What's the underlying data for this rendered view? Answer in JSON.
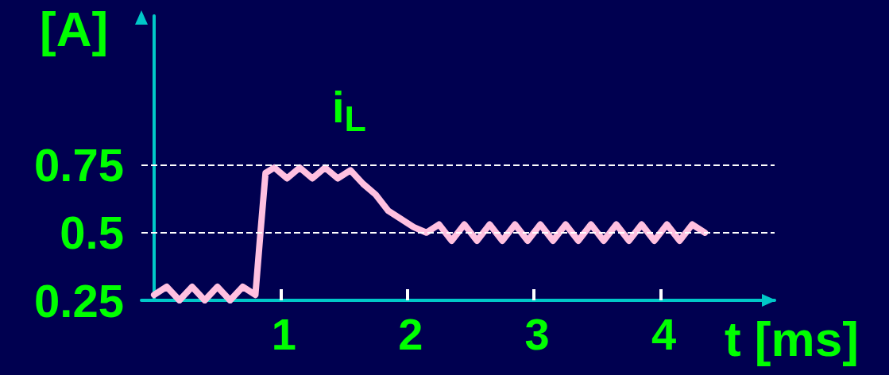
{
  "chart_data": {
    "type": "line",
    "xlabel": "t [ms]",
    "ylabel": "[A]",
    "xlim": [
      -0.1,
      4.9
    ],
    "xticks": [
      1,
      2,
      3,
      4
    ],
    "ylim": [
      0.25,
      1.3
    ],
    "yticks": [
      0.25,
      0.5,
      0.75
    ],
    "grid": false,
    "line_style": "solid",
    "series": [
      {
        "name": null,
        "color": "#ffc0e0",
        "x": [
          0,
          0.1,
          0.2,
          0.3,
          0.4,
          0.5,
          0.6,
          0.7,
          0.8,
          0.84,
          0.88,
          0.95,
          1.05,
          1.15,
          1.25,
          1.35,
          1.45,
          1.55,
          1.65,
          1.75,
          1.85,
          1.95,
          2.05,
          2.15,
          2.25,
          2.35,
          2.45,
          2.55,
          2.65,
          2.75,
          2.85,
          2.95,
          3.05,
          3.15,
          3.25,
          3.35,
          3.45,
          3.55,
          3.65,
          3.75,
          3.85,
          3.95,
          4.05,
          4.15,
          4.25,
          4.35
        ],
        "values": [
          0.27,
          0.3,
          0.25,
          0.3,
          0.25,
          0.3,
          0.25,
          0.3,
          0.27,
          0.5,
          0.72,
          0.74,
          0.7,
          0.74,
          0.7,
          0.74,
          0.7,
          0.73,
          0.68,
          0.64,
          0.58,
          0.55,
          0.52,
          0.5,
          0.53,
          0.47,
          0.53,
          0.47,
          0.53,
          0.47,
          0.53,
          0.47,
          0.53,
          0.47,
          0.53,
          0.47,
          0.53,
          0.47,
          0.53,
          0.47,
          0.53,
          0.47,
          0.53,
          0.47,
          0.53,
          0.5
        ]
      }
    ],
    "ref_lines": [
      {
        "axis": "y",
        "value": 0.75,
        "label": null,
        "color": "#ffffff",
        "line_style": "dashed"
      },
      {
        "axis": "y",
        "value": 0.5,
        "label": null,
        "color": "#ffffff",
        "line_style": "dashed"
      }
    ],
    "annotations": [
      "i$_{L}$"
    ]
  }
}
